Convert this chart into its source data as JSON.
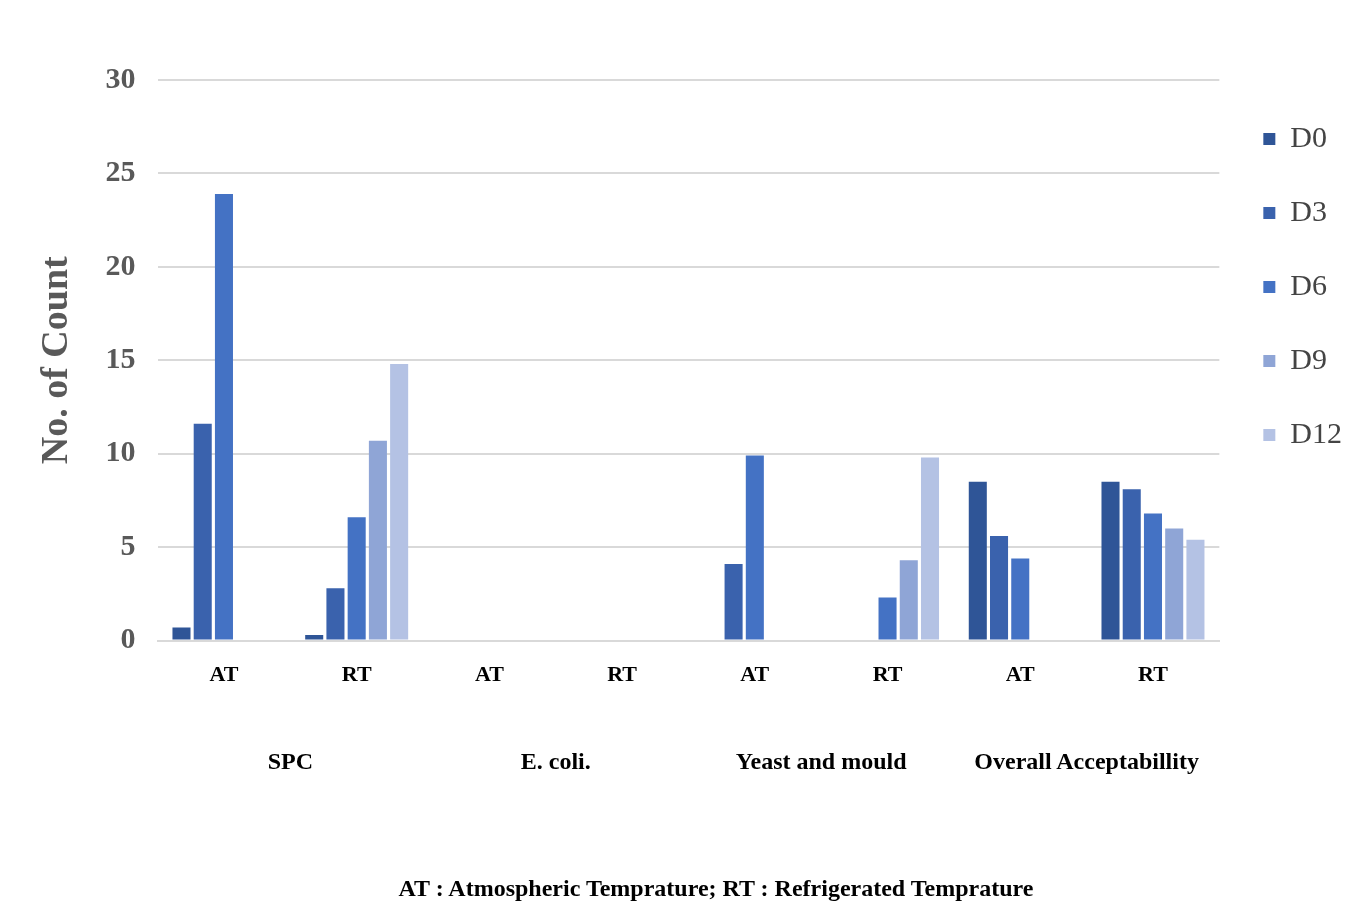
{
  "chart_data": {
    "type": "bar",
    "ylabel": "No. of Count",
    "categories": [
      "AT",
      "RT",
      "AT",
      "RT",
      "AT",
      "RT",
      "AT",
      "RT"
    ],
    "series": [
      {
        "name": "D0",
        "color": "#2f5597",
        "values": [
          0.7,
          0.3,
          null,
          null,
          null,
          null,
          8.5,
          8.5
        ]
      },
      {
        "name": "D3",
        "color": "#3a62ad",
        "values": [
          11.6,
          2.8,
          null,
          null,
          4.1,
          null,
          5.6,
          8.1
        ]
      },
      {
        "name": "D6",
        "color": "#4472c4",
        "values": [
          23.9,
          6.6,
          null,
          null,
          9.9,
          2.3,
          4.4,
          6.8
        ]
      },
      {
        "name": "D9",
        "color": "#8fa5d6",
        "values": [
          null,
          10.7,
          null,
          null,
          null,
          4.3,
          null,
          6.0
        ]
      },
      {
        "name": "D12",
        "color": "#b4c2e4",
        "values": [
          null,
          14.8,
          null,
          null,
          null,
          9.8,
          null,
          5.4
        ]
      }
    ],
    "ylim": [
      0,
      30
    ],
    "yticks": [
      0,
      5,
      10,
      15,
      20,
      25,
      30
    ],
    "grid": "y",
    "legend": "right",
    "annotations": [
      "SPC",
      "E. coli.",
      "Yeast and mould",
      "Overall Acceptabillity",
      "AT : Atmospheric Temprature; RT : Refrigerated Temprature"
    ]
  }
}
